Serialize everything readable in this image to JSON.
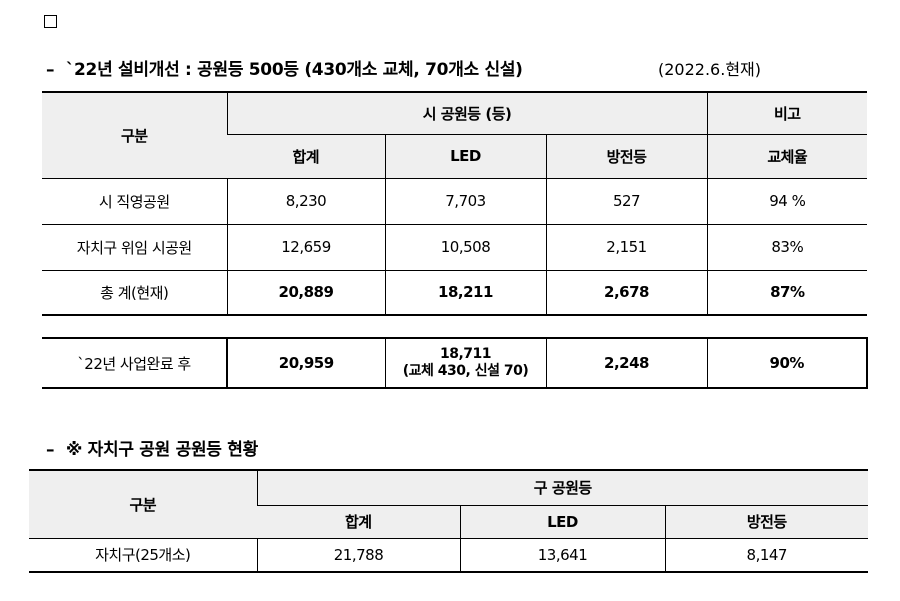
{
  "section1": {
    "bullet": "–",
    "title": "`22년 설비개선 : 공원등 500등 (430개소 교체, 70개소 신설)",
    "date": "(2022.6.현재)"
  },
  "table1": {
    "header": {
      "category": "구분",
      "group_city": "시 공원등 (등)",
      "group_note": "비고",
      "col_total": "합계",
      "col_led": "LED",
      "col_sodium": "방전등",
      "col_rate": "교체율"
    },
    "rows": [
      {
        "label": "시 직영공원",
        "total": "8,230",
        "led": "7,703",
        "sodium": "527",
        "rate": "94 %"
      },
      {
        "label": "자치구 위임 시공원",
        "total": "12,659",
        "led": "10,508",
        "sodium": "2,151",
        "rate": "83%"
      },
      {
        "label": "총 계(현재)",
        "total": "20,889",
        "led": "18,211",
        "sodium": "2,678",
        "rate": "87%"
      }
    ]
  },
  "table2": {
    "label": "`22년 사업완료 후",
    "total": "20,959",
    "led": "18,711",
    "led_detail": "(교체 430, 신설 70)",
    "sodium": "2,248",
    "rate": "90%"
  },
  "section2": {
    "bullet": "–",
    "title": "※ 자치구 공원 공원등 현황"
  },
  "table3": {
    "header": {
      "category": "구분",
      "group": "구 공원등",
      "col_total": "합계",
      "col_led": "LED",
      "col_sodium": "방전등"
    },
    "row": {
      "label": "자치구(25개소)",
      "total": "21,788",
      "led": "13,641",
      "sodium": "8,147"
    }
  }
}
